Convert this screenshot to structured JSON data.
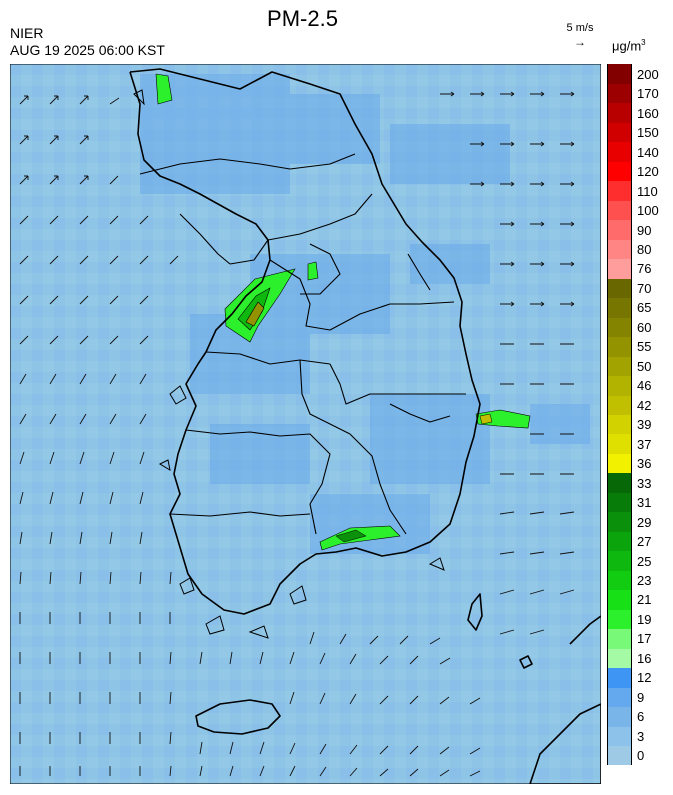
{
  "header": {
    "title": "PM-2.5",
    "org": "NIER",
    "datetime": "AUG 19 2025 06:00 KST"
  },
  "wind_key": {
    "label": "5 m/s",
    "arrow": "→"
  },
  "unit": {
    "base": "μg/m",
    "exp": "3"
  },
  "legend": {
    "bins": [
      {
        "label": "0",
        "color": "#9ecae6"
      },
      {
        "label": "3",
        "color": "#8dc2ea"
      },
      {
        "label": "6",
        "color": "#7ab5ea"
      },
      {
        "label": "9",
        "color": "#64a8ee"
      },
      {
        "label": "12",
        "color": "#3e95f4"
      },
      {
        "label": "16",
        "color": "#a5fba5"
      },
      {
        "label": "17",
        "color": "#78fa78"
      },
      {
        "label": "19",
        "color": "#2cf02c"
      },
      {
        "label": "21",
        "color": "#17e017"
      },
      {
        "label": "23",
        "color": "#12cc12"
      },
      {
        "label": "25",
        "color": "#0fb80f"
      },
      {
        "label": "27",
        "color": "#0ca40c"
      },
      {
        "label": "29",
        "color": "#0a900a"
      },
      {
        "label": "31",
        "color": "#087c08"
      },
      {
        "label": "33",
        "color": "#066806"
      },
      {
        "label": "36",
        "color": "#f2f200"
      },
      {
        "label": "37",
        "color": "#e0e000"
      },
      {
        "label": "39",
        "color": "#d2d200"
      },
      {
        "label": "42",
        "color": "#c0c000"
      },
      {
        "label": "46",
        "color": "#b2b200"
      },
      {
        "label": "50",
        "color": "#a2a200"
      },
      {
        "label": "55",
        "color": "#939300"
      },
      {
        "label": "60",
        "color": "#848400"
      },
      {
        "label": "65",
        "color": "#767600"
      },
      {
        "label": "70",
        "color": "#696700"
      },
      {
        "label": "76",
        "color": "#ff9c9c"
      },
      {
        "label": "80",
        "color": "#ff8484"
      },
      {
        "label": "90",
        "color": "#ff6a6a"
      },
      {
        "label": "100",
        "color": "#ff5050"
      },
      {
        "label": "110",
        "color": "#ff2e2e"
      },
      {
        "label": "120",
        "color": "#ff0000"
      },
      {
        "label": "140",
        "color": "#e80000"
      },
      {
        "label": "150",
        "color": "#d00000"
      },
      {
        "label": "160",
        "color": "#b80000"
      },
      {
        "label": "170",
        "color": "#9c0000"
      },
      {
        "label": "200",
        "color": "#820000"
      }
    ]
  },
  "map": {
    "background": "#8ec4e6",
    "hotspots": [
      {
        "label": "capital-region",
        "color": "#2cf02c",
        "level": "19-23"
      },
      {
        "label": "capital-core",
        "color": "#939300",
        "level": "55-60"
      },
      {
        "label": "east-coast",
        "color": "#2cf02c",
        "level": "19-21"
      },
      {
        "label": "south-coast",
        "color": "#0fb80f",
        "level": "25-29"
      },
      {
        "label": "north-west",
        "color": "#2cf02c",
        "level": "19-21"
      }
    ]
  }
}
